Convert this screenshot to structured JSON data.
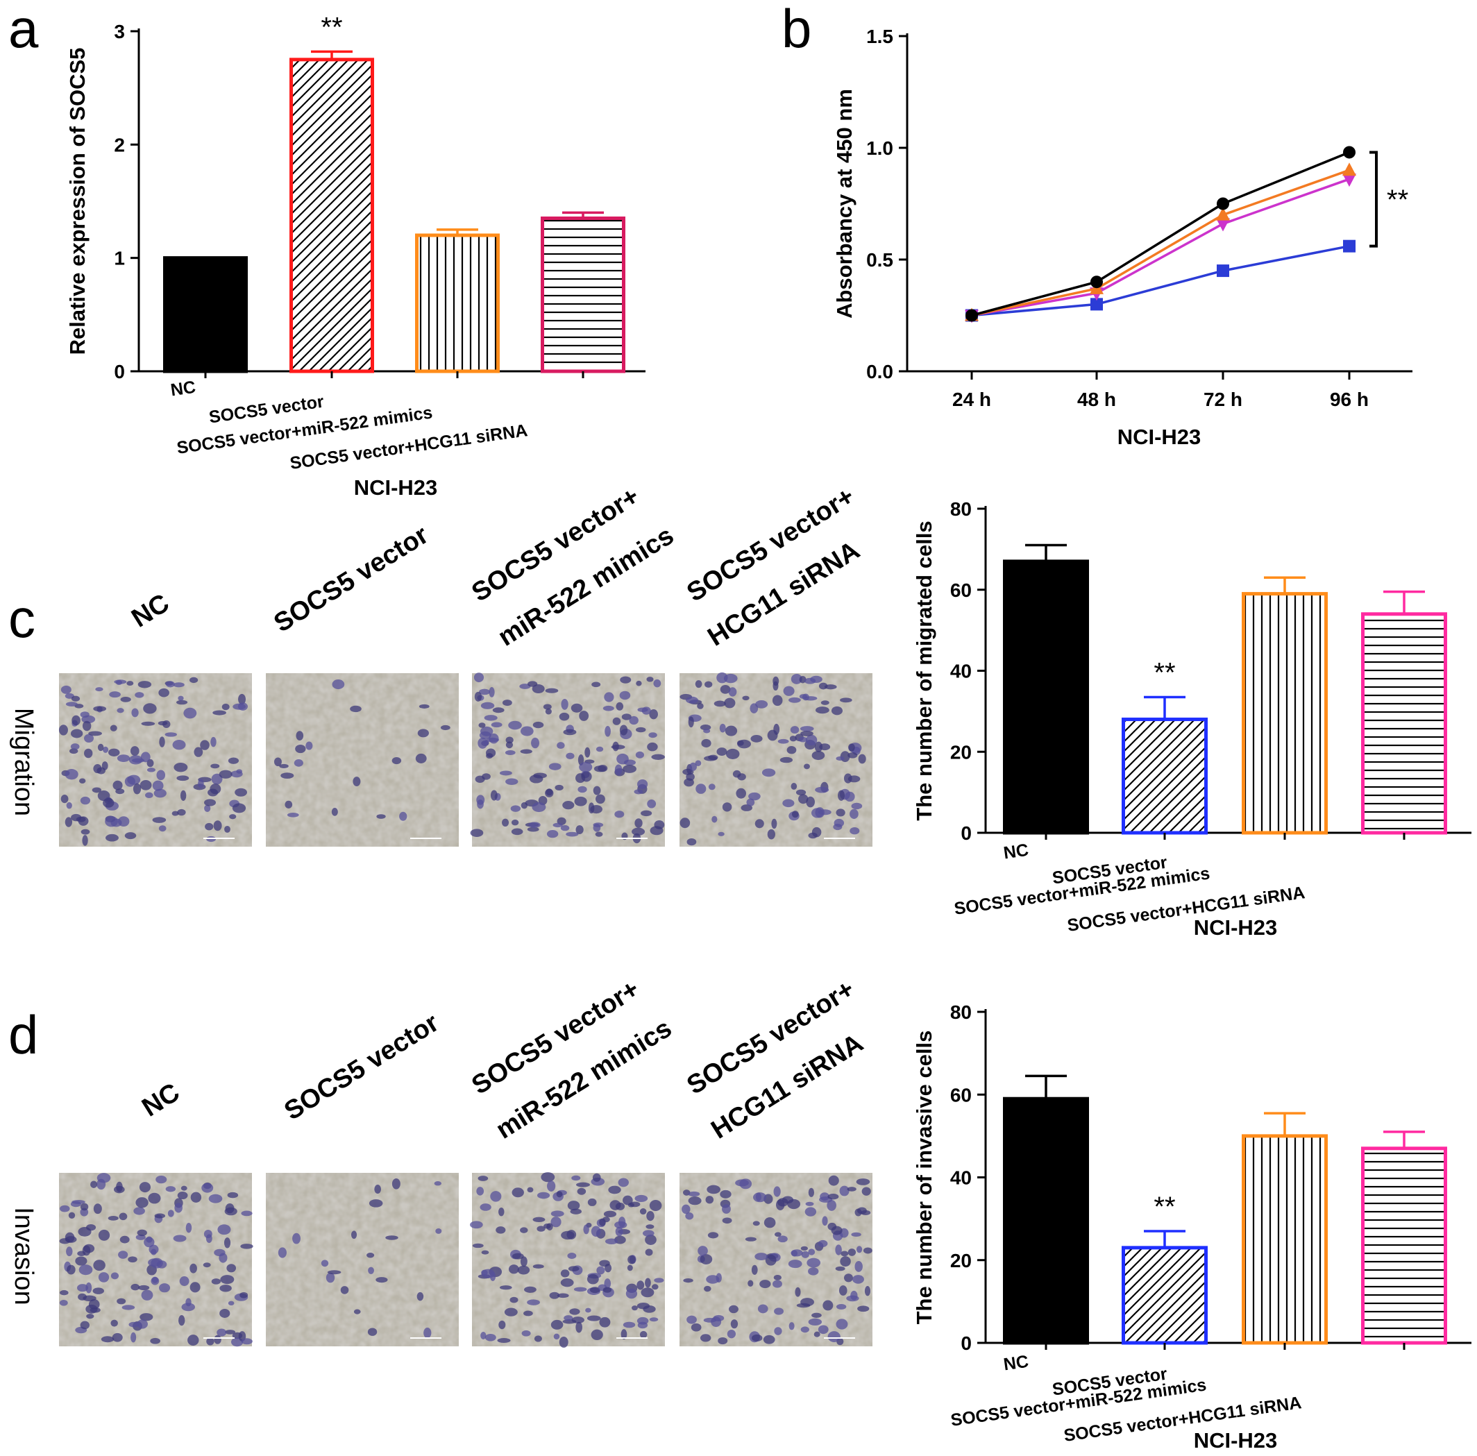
{
  "panels": {
    "a": "a",
    "b": "b",
    "c": "c",
    "d": "d"
  },
  "conditions": {
    "nc": "NC",
    "socs5": "SOCS5 vector",
    "mimics_line1": "SOCS5 vector+",
    "mimics_line2": "miR-522 mimics",
    "sirna_line1": "SOCS5 vector+",
    "sirna_line2": "HCG11 siRNA"
  },
  "row_labels": {
    "c": "Migration",
    "d": "Invasion"
  },
  "colors": {
    "nc": "#000000",
    "socs5_a": "#ff1a1a",
    "socs5_cd": "#1f2fff",
    "mimics": "#ff8c1a",
    "sirna": "#d81b60",
    "sirna_cd": "#ff2aa0",
    "line_socs5": "#2b3cd6",
    "line_mimics": "#f37a22",
    "line_sirna": "#cc33cc"
  },
  "chart_data": [
    {
      "id": "a",
      "type": "bar",
      "categories": [
        "NC",
        "SOCS5 vector",
        "SOCS5 vector+miR-522 mimics",
        "SOCS5 vector+HCG11 siRNA"
      ],
      "values": [
        1.0,
        2.75,
        1.2,
        1.35
      ],
      "errors": [
        0,
        0.07,
        0.05,
        0.05
      ],
      "patterns": [
        "solid",
        "diagonal",
        "vertical",
        "horizontal"
      ],
      "ylabel": "Relative expression of SOCS5",
      "xlabel": "NCI-H23",
      "ylim": [
        0,
        3
      ],
      "yticks": [
        "0",
        "1",
        "2",
        "3"
      ],
      "annotations": [
        {
          "category": "SOCS5 vector",
          "text": "**"
        }
      ]
    },
    {
      "id": "b",
      "type": "line",
      "x": [
        "24 h",
        "48 h",
        "72 h",
        "96 h"
      ],
      "series": [
        {
          "marker": "circle",
          "values": [
            0.25,
            0.4,
            0.75,
            0.98
          ]
        },
        {
          "marker": "triangle-up",
          "values": [
            0.25,
            0.37,
            0.7,
            0.9
          ]
        },
        {
          "marker": "triangle-down",
          "values": [
            0.25,
            0.35,
            0.66,
            0.86
          ]
        },
        {
          "marker": "square",
          "values": [
            0.25,
            0.3,
            0.45,
            0.56
          ]
        }
      ],
      "ylabel": "Absorbancy at 450 nm",
      "xlabel": "NCI-H23",
      "ylim": [
        0,
        1.5
      ],
      "yticks": [
        "0.0",
        "0.5",
        "1.0",
        "1.5"
      ],
      "annotations": [
        {
          "text": "**"
        }
      ]
    },
    {
      "id": "c",
      "type": "bar",
      "categories": [
        "NC",
        "SOCS5 vector",
        "SOCS5 vector+miR-522 mimics",
        "SOCS5 vector+HCG11 siRNA"
      ],
      "values": [
        67,
        28,
        59,
        54
      ],
      "errors": [
        4,
        5.5,
        4,
        5.5
      ],
      "patterns": [
        "solid",
        "diagonal",
        "vertical",
        "horizontal"
      ],
      "ylabel": "The number of migrated cells",
      "xlabel": "NCI-H23",
      "ylim": [
        0,
        80
      ],
      "yticks": [
        "0",
        "20",
        "40",
        "60",
        "80"
      ],
      "annotations": [
        {
          "category": "SOCS5 vector",
          "text": "**"
        }
      ]
    },
    {
      "id": "d",
      "type": "bar",
      "categories": [
        "NC",
        "SOCS5 vector",
        "SOCS5 vector+miR-522 mimics",
        "SOCS5 vector+HCG11 siRNA"
      ],
      "values": [
        59,
        23,
        50,
        47
      ],
      "errors": [
        5.5,
        4,
        5.5,
        4
      ],
      "patterns": [
        "solid",
        "diagonal",
        "vertical",
        "horizontal"
      ],
      "ylabel": "The number of invasive cells",
      "xlabel": "NCI-H23",
      "ylim": [
        0,
        80
      ],
      "yticks": [
        "0",
        "20",
        "40",
        "60",
        "80"
      ],
      "annotations": [
        {
          "category": "SOCS5 vector",
          "text": "**"
        }
      ]
    }
  ]
}
